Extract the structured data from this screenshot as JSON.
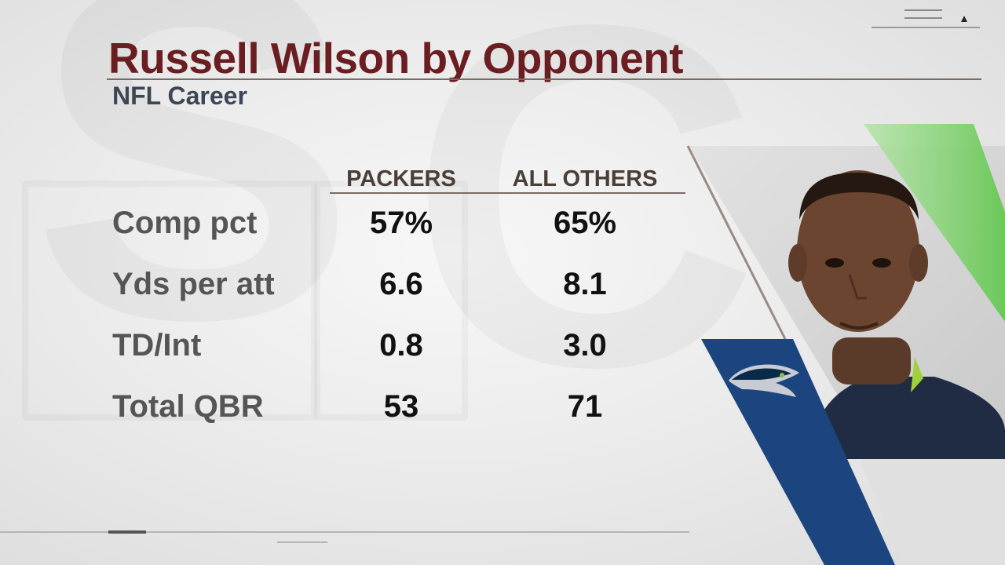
{
  "header": {
    "title": "Russell Wilson by Opponent",
    "subtitle": "NFL Career"
  },
  "table": {
    "columns": [
      "PACKERS",
      "ALL OTHERS"
    ],
    "rows": [
      {
        "label": "Comp pct",
        "packers": "57%",
        "others": "65%"
      },
      {
        "label": "Yds per att",
        "packers": "6.6",
        "others": "8.1"
      },
      {
        "label": "TD/Int",
        "packers": "0.8",
        "others": "3.0"
      },
      {
        "label": "Total QBR",
        "packers": "53",
        "others": "71"
      }
    ]
  },
  "graphics": {
    "player_photo": "player-headshot",
    "team_logo": "seahawks-logo-icon",
    "colors": {
      "title": "#6b1e22",
      "subtitle": "#3d4654",
      "navy_stripe": "#1c4580",
      "green_stripe": "#7ed06a"
    }
  }
}
